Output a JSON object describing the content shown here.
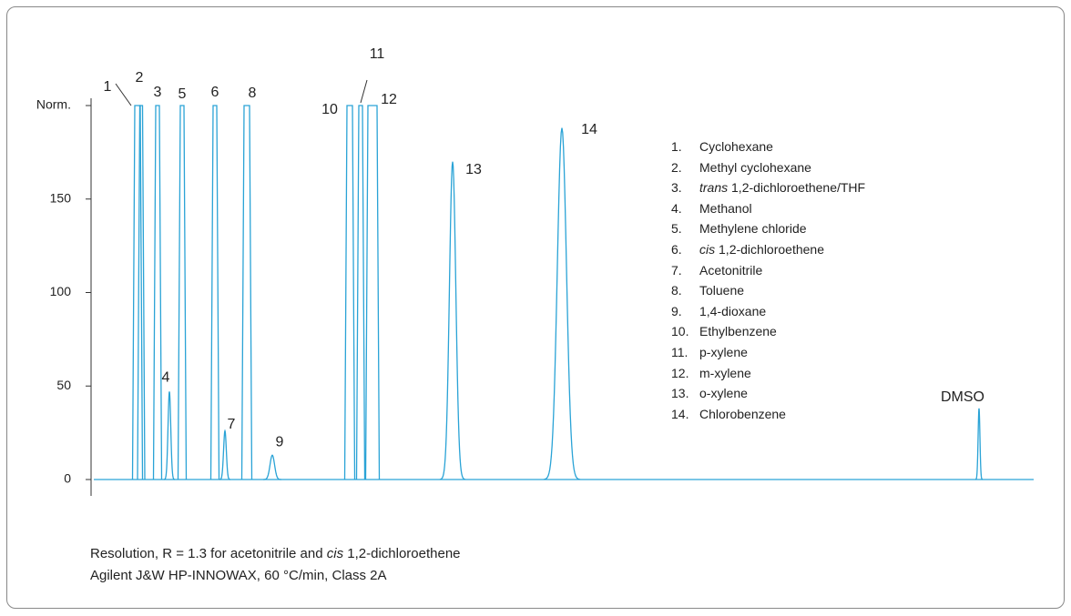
{
  "chart_data": {
    "type": "chromatogram",
    "color": "#2aa3d6",
    "xlim": [
      0,
      1035
    ],
    "ylim": [
      0,
      200
    ],
    "yticks": [
      0,
      50,
      100,
      150,
      {
        "value": 200,
        "label": "Norm."
      }
    ],
    "peaks": [
      {
        "label": "1",
        "x": 51,
        "height": 200,
        "width": 3
      },
      {
        "label": "2",
        "x": 55,
        "height": 200,
        "width": 1.5
      },
      {
        "label": "3",
        "x": 73,
        "height": 200,
        "width": 2
      },
      {
        "label": "4",
        "x": 86,
        "height": 47,
        "width": 1.5
      },
      {
        "label": "5",
        "x": 100,
        "height": 200,
        "width": 2
      },
      {
        "label": "6",
        "x": 136,
        "height": 200,
        "width": 2
      },
      {
        "label": "7",
        "x": 147,
        "height": 26,
        "width": 1.5
      },
      {
        "label": "8",
        "x": 171,
        "height": 200,
        "width": 3
      },
      {
        "label": "9",
        "x": 199,
        "height": 13,
        "width": 2.5
      },
      {
        "label": "10",
        "x": 284,
        "height": 200,
        "width": 3
      },
      {
        "label": "11",
        "x": 296,
        "height": 200,
        "width": 2
      },
      {
        "label": "12",
        "x": 309,
        "height": 200,
        "width": 5
      },
      {
        "label": "13",
        "x": 397,
        "height": 170,
        "width": 3.5
      },
      {
        "label": "14",
        "x": 517,
        "height": 188,
        "width": 5
      },
      {
        "label": "DMSO",
        "x": 975,
        "height": 38,
        "width": 1
      }
    ],
    "legend": [
      {
        "number": "1.",
        "name": "Cyclohexane"
      },
      {
        "number": "2.",
        "name": "Methyl cyclohexane"
      },
      {
        "number": "3.",
        "prefix": "trans",
        "name": "1,2-dichloroethene/THF"
      },
      {
        "number": "4.",
        "name": "Methanol"
      },
      {
        "number": "5.",
        "name": "Methylene chloride"
      },
      {
        "number": "6.",
        "prefix": "cis",
        "name": "1,2-dichloroethene"
      },
      {
        "number": "7.",
        "name": "Acetonitrile"
      },
      {
        "number": "8.",
        "name": "Toluene"
      },
      {
        "number": "9.",
        "name": "1,4-dioxane"
      },
      {
        "number": "10.",
        "name": "Ethylbenzene"
      },
      {
        "number": "11.",
        "name": "p-xylene"
      },
      {
        "number": "12.",
        "name": "m-xylene"
      },
      {
        "number": "13.",
        "name": "o-xylene"
      },
      {
        "number": "14.",
        "name": "Chlorobenzene"
      }
    ],
    "caption": [
      [
        {
          "text": "Resolution, R = 1.3 for acetonitrile and"
        },
        {
          "text": "cis",
          "italic": true
        },
        {
          "text": "1,2-dichloroethene"
        }
      ],
      [
        {
          "text": "Agilent J&W HP-INNOWAX, 60 °C/min, Class 2A"
        }
      ]
    ]
  }
}
